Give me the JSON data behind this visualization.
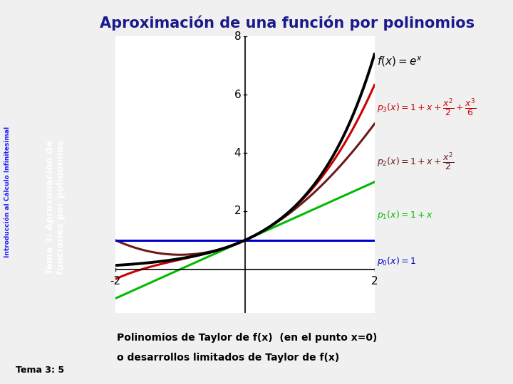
{
  "title": "Aproximación de una función por polinomios",
  "title_fontsize": 15,
  "title_color": "#1a1a8c",
  "title_fontweight": "bold",
  "xmin": -2,
  "xmax": 2,
  "ymin": -1.5,
  "ymax": 8,
  "yticks": [
    2,
    4,
    6,
    8
  ],
  "xticks": [
    -2,
    2
  ],
  "bg_color": "#f0f0f0",
  "plot_bg": "#ffffff",
  "curve_f_color": "#000000",
  "curve_p0_color": "#0000cc",
  "curve_p1_color": "#00bb00",
  "curve_p2_color": "#6b1a1a",
  "curve_p3_color": "#cc0000",
  "curve_f_lw": 2.8,
  "curve_p0_lw": 2.2,
  "curve_p1_lw": 2.2,
  "curve_p2_lw": 2.2,
  "curve_p3_lw": 2.2,
  "annotation_text1": "Polinomios de Taylor de f(x)  (en el punto x=0)",
  "annotation_text2": "o desarrollos limitados de Taylor de f(x)",
  "annotation_bg": "#d4a017",
  "annotation_fontsize": 10,
  "sidebar_dark_color": "#1a1a6e",
  "sidebar_blue_color": "#2a6099",
  "sidebar_text1": "Introducción al Cálculo Infinitesimal",
  "sidebar_text2": "Tema 3: Aproximación de\nfunciones por polinomios",
  "sidebar_text1_color": "#1a1aff",
  "sidebar_text2_color": "#ffffff",
  "bottom_text": "Tema 3: 5",
  "figsize": [
    7.2,
    5.4
  ],
  "dpi": 100
}
